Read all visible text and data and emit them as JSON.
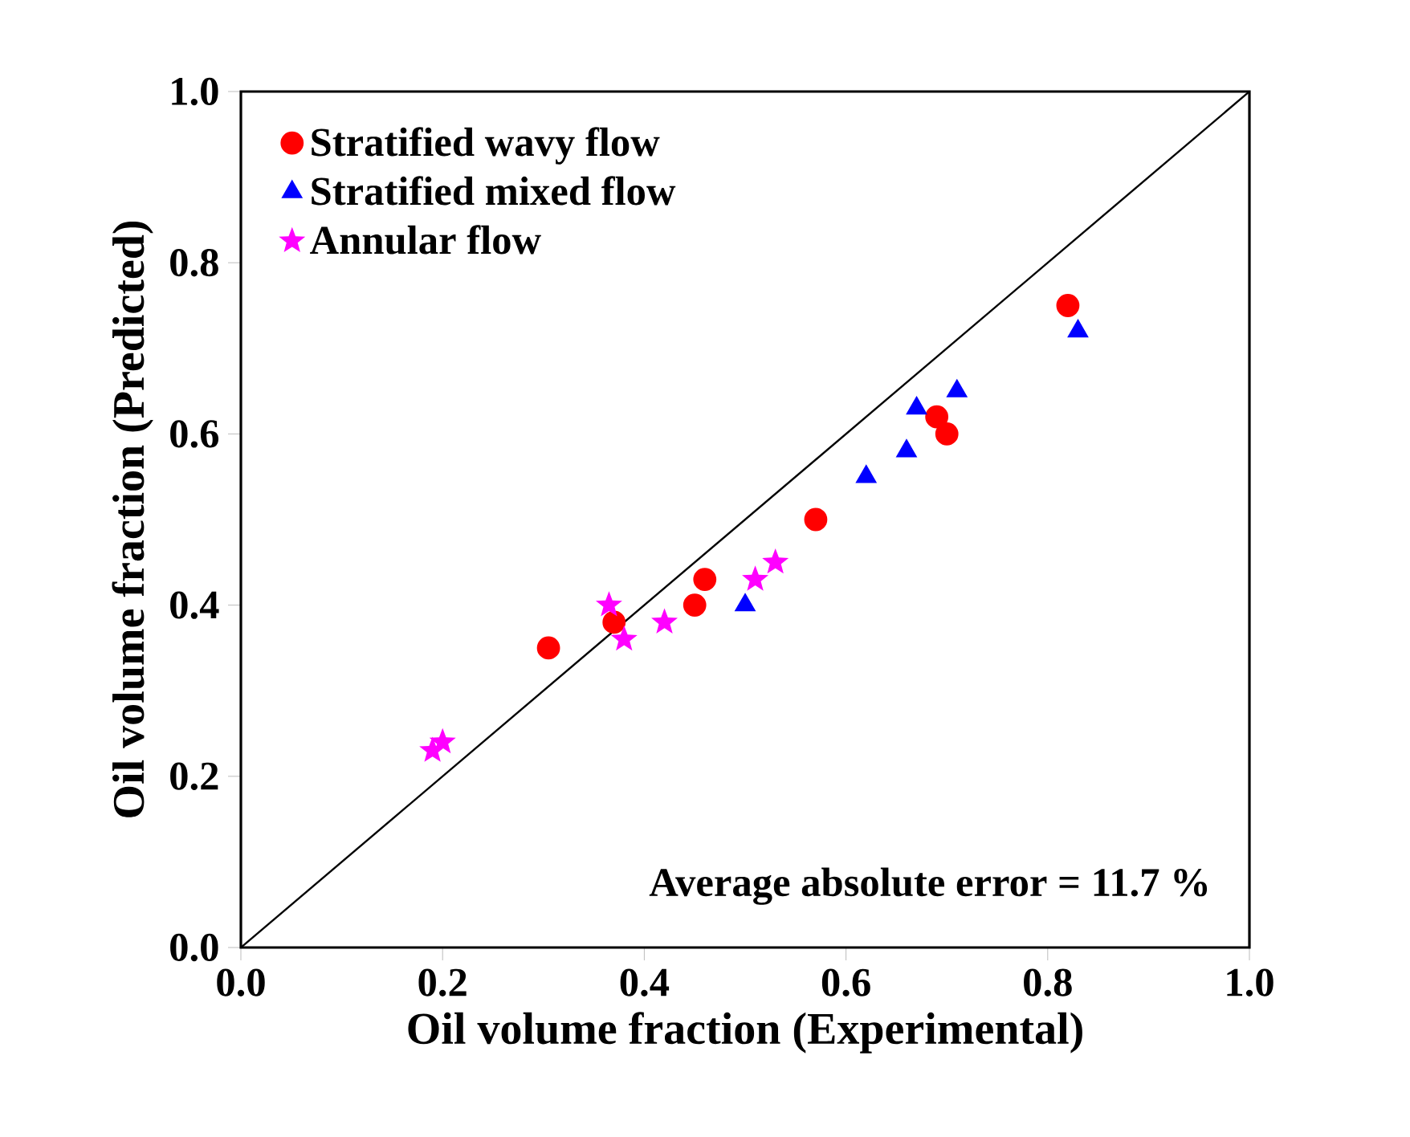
{
  "chart_data": {
    "type": "scatter",
    "xlabel": "Oil volume fraction (Experimental)",
    "ylabel": "Oil volume fraction (Predicted)",
    "xlim": [
      0,
      1
    ],
    "ylim": [
      0,
      1
    ],
    "xticks": [
      {
        "value": 0,
        "label": "0.0"
      },
      {
        "value": 0.2,
        "label": "0.2"
      },
      {
        "value": 0.4,
        "label": "0.4"
      },
      {
        "value": 0.6,
        "label": "0.6"
      },
      {
        "value": 0.8,
        "label": "0.8"
      },
      {
        "value": 1,
        "label": "1.0"
      }
    ],
    "yticks": [
      {
        "value": 0,
        "label": "0.0"
      },
      {
        "value": 0.2,
        "label": "0.2"
      },
      {
        "value": 0.4,
        "label": "0.4"
      },
      {
        "value": 0.6,
        "label": "0.6"
      },
      {
        "value": 0.8,
        "label": "0.8"
      },
      {
        "value": 1,
        "label": "1.0"
      }
    ],
    "legend": "top left",
    "grid": false,
    "annotations": [
      "Average absolute error = 11.7 %"
    ],
    "series": [
      {
        "name": "Stratified wavy flow",
        "color": "#ff0000",
        "marker": "circle",
        "x": [
          0.305,
          0.37,
          0.45,
          0.46,
          0.57,
          0.69,
          0.7,
          0.82
        ],
        "values": [
          0.35,
          0.38,
          0.4,
          0.43,
          0.5,
          0.62,
          0.6,
          0.75
        ]
      },
      {
        "name": "Stratified mixed flow",
        "color": "#0000ff",
        "marker": "triangle",
        "x": [
          0.5,
          0.62,
          0.66,
          0.67,
          0.71,
          0.83
        ],
        "values": [
          0.4,
          0.55,
          0.58,
          0.63,
          0.65,
          0.72
        ]
      },
      {
        "name": "Annular flow",
        "color": "#ff00ff",
        "marker": "star",
        "x": [
          0.19,
          0.2,
          0.365,
          0.38,
          0.42,
          0.51,
          0.53
        ],
        "values": [
          0.23,
          0.24,
          0.4,
          0.36,
          0.38,
          0.43,
          0.45
        ]
      },
      {
        "type": "line",
        "color": "#000000",
        "marker": "none",
        "x": [
          0,
          1
        ],
        "values": [
          0,
          1
        ]
      }
    ]
  }
}
